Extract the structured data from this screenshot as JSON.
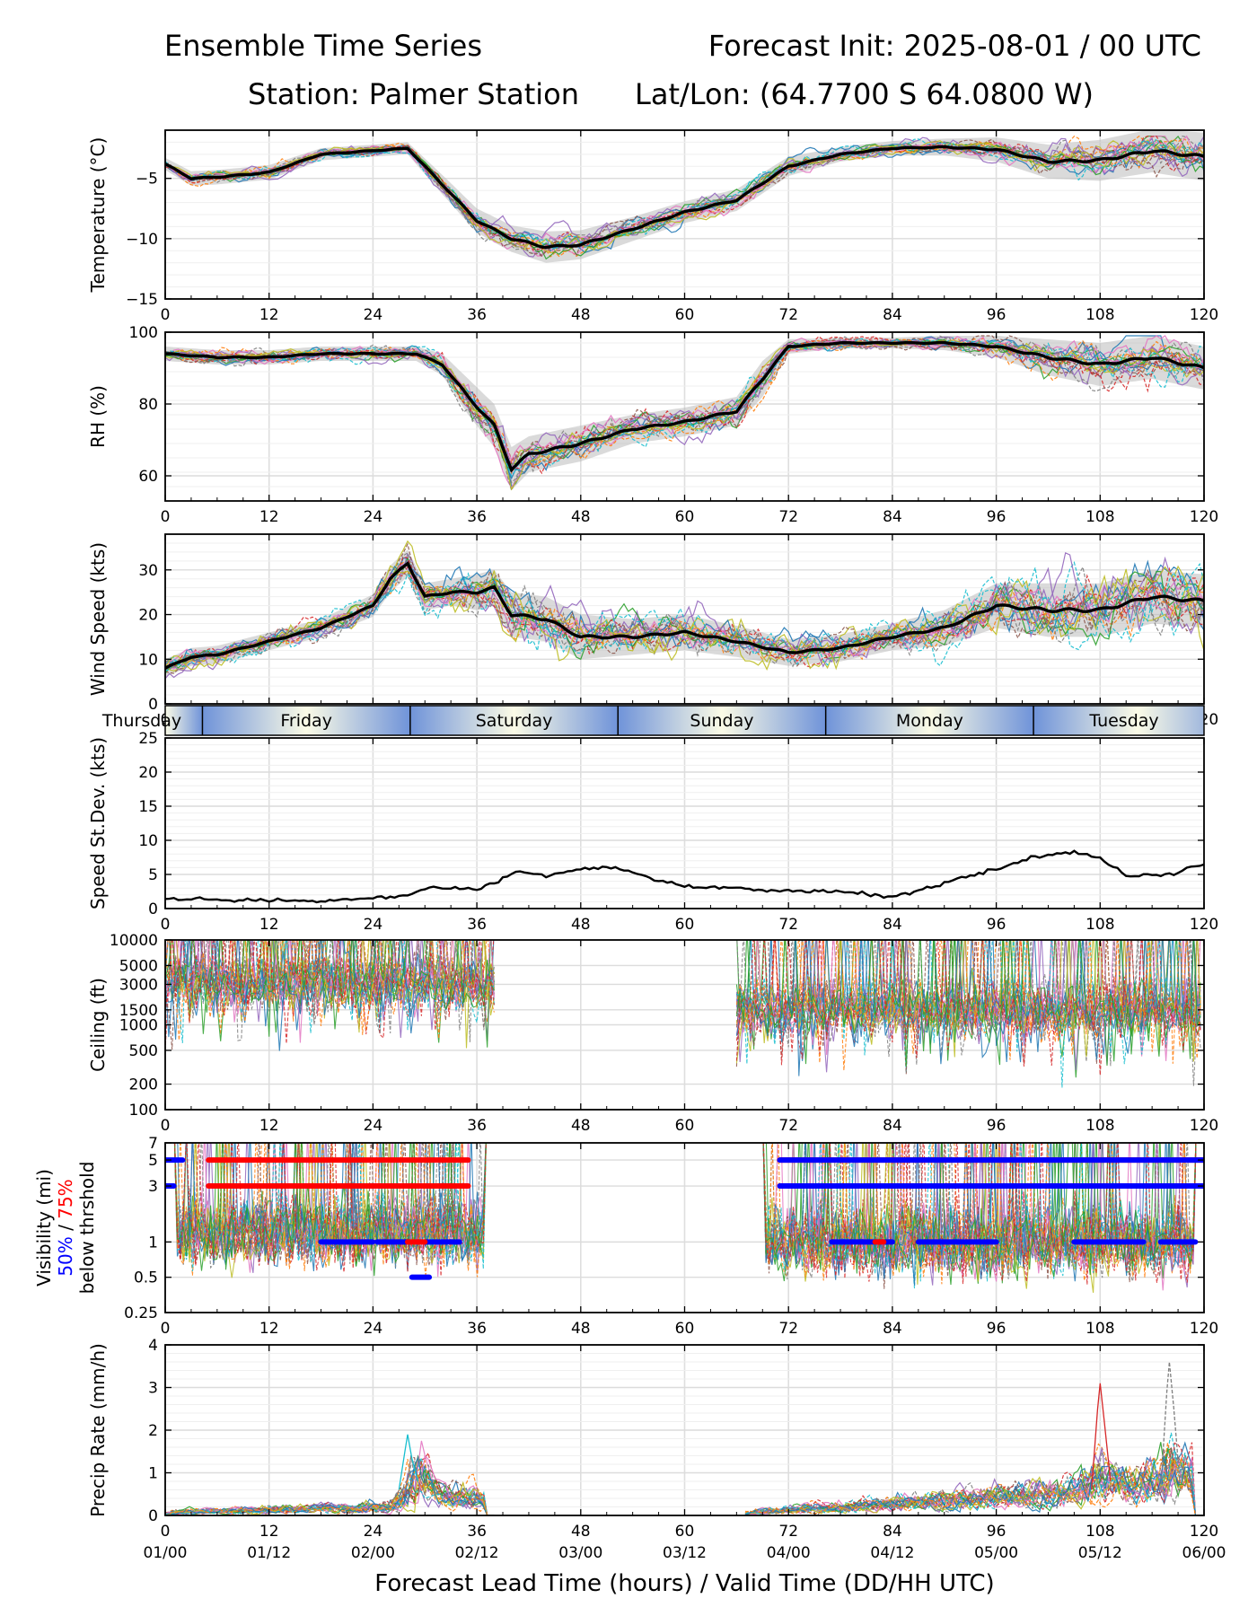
{
  "header": {
    "title": "Ensemble Time Series",
    "init": "Forecast Init: 2025-08-01 / 00 UTC",
    "station": "Station: Palmer Station",
    "latlon": "Lat/Lon: (64.7700 S 64.0800 W)"
  },
  "xaxis": {
    "label": "Forecast Lead Time (hours) / Valid Time (DD/HH UTC)",
    "range": [
      0,
      120
    ],
    "ticks": [
      0,
      12,
      24,
      36,
      48,
      60,
      72,
      84,
      96,
      108,
      120
    ],
    "tick_labels": [
      "0",
      "12",
      "24",
      "36",
      "48",
      "60",
      "72",
      "84",
      "96",
      "108",
      "120"
    ],
    "valid_time_labels": [
      "01/00",
      "01/12",
      "02/00",
      "02/12",
      "03/00",
      "03/12",
      "04/00",
      "04/12",
      "05/00",
      "05/12",
      "06/00"
    ]
  },
  "day_band": {
    "days": [
      {
        "label": "Thursday",
        "start": -4.3,
        "end": 4.3
      },
      {
        "label": "Friday",
        "start": 4.3,
        "end": 28.3
      },
      {
        "label": "Saturday",
        "start": 28.3,
        "end": 52.3
      },
      {
        "label": "Sunday",
        "start": 52.3,
        "end": 76.3
      },
      {
        "label": "Monday",
        "start": 76.3,
        "end": 100.3
      },
      {
        "label": "Tuesday",
        "start": 100.3,
        "end": 124.3
      }
    ]
  },
  "colors": {
    "ensemble": [
      "#1f77b4",
      "#ff7f0e",
      "#2ca02c",
      "#d62728",
      "#9467bd",
      "#8c564b",
      "#e377c2",
      "#7f7f7f",
      "#bcbd22",
      "#17becf"
    ],
    "mean": "#000000",
    "spread_fill": "#bbbbbb",
    "vis_50": "#0000ff",
    "vis_75": "#ff0000",
    "day_blue": "#6f93d9",
    "day_cream": "#fbfbe6"
  },
  "chart_data": [
    {
      "id": "temperature",
      "type": "line",
      "ylabel": "Temperature (°C)",
      "ylim": [
        -15,
        -1
      ],
      "yticks": [
        -15,
        -10,
        -5
      ],
      "ytick_labels": [
        "−15",
        "−10",
        "−5"
      ],
      "grid": true,
      "x": [
        0,
        3,
        6,
        12,
        18,
        24,
        28,
        32,
        36,
        40,
        44,
        48,
        54,
        60,
        66,
        72,
        78,
        84,
        90,
        96,
        102,
        108,
        114,
        120
      ],
      "mean": [
        -3.8,
        -5.0,
        -4.9,
        -4.5,
        -3.0,
        -2.7,
        -2.5,
        -5.5,
        -8.5,
        -10.0,
        -10.7,
        -10.5,
        -9.2,
        -7.8,
        -6.8,
        -4.0,
        -3.0,
        -2.5,
        -2.4,
        -2.6,
        -3.6,
        -3.5,
        -2.7,
        -3.2
      ],
      "spread": [
        0.5,
        0.6,
        0.6,
        0.6,
        0.5,
        0.5,
        0.5,
        0.8,
        1.0,
        1.1,
        1.3,
        1.2,
        1.0,
        0.9,
        0.9,
        0.8,
        0.6,
        0.6,
        0.7,
        1.0,
        1.4,
        1.7,
        1.8,
        2.0
      ],
      "members": 20
    },
    {
      "id": "rh",
      "type": "line",
      "ylabel": "RH (%)",
      "ylim": [
        53,
        100
      ],
      "yticks": [
        60,
        80,
        100
      ],
      "ytick_labels": [
        "60",
        "80",
        "100"
      ],
      "grid": true,
      "x": [
        0,
        6,
        12,
        18,
        24,
        29,
        32,
        35,
        38,
        40,
        42,
        48,
        54,
        60,
        66,
        69,
        72,
        78,
        84,
        90,
        96,
        102,
        108,
        114,
        120
      ],
      "mean": [
        94,
        93,
        93,
        94,
        94,
        94,
        91,
        82,
        74,
        62,
        66,
        69,
        73,
        75,
        78,
        87,
        96,
        97,
        97,
        97,
        96,
        93,
        91,
        93,
        90
      ],
      "spread": [
        2,
        2,
        2,
        2,
        2,
        2,
        3,
        5,
        6,
        6,
        5,
        5,
        4,
        4,
        4,
        5,
        2,
        1.5,
        1.5,
        2,
        3,
        5,
        6,
        6,
        6
      ],
      "members": 20
    },
    {
      "id": "wind",
      "type": "line",
      "ylabel": "Wind Speed (kts)",
      "ylim": [
        0,
        38
      ],
      "yticks": [
        0,
        10,
        20,
        30
      ],
      "ytick_labels": [
        "0",
        "10",
        "20",
        "30"
      ],
      "grid": true,
      "x": [
        0,
        3,
        6,
        12,
        18,
        24,
        26,
        28,
        30,
        33,
        36,
        38,
        40,
        44,
        48,
        54,
        60,
        66,
        72,
        78,
        84,
        90,
        96,
        102,
        108,
        114,
        120
      ],
      "mean": [
        8,
        10.5,
        11,
        14,
        17,
        22,
        28,
        31.5,
        24,
        25,
        25,
        26,
        20,
        19,
        15,
        15,
        16,
        14,
        11.5,
        12.5,
        15,
        17,
        22,
        21,
        21,
        24,
        23
      ],
      "spread": [
        2,
        2,
        2,
        2,
        2,
        2.5,
        3,
        3,
        3,
        3,
        4,
        4,
        5,
        5,
        5,
        4,
        4,
        3.5,
        3,
        3,
        3,
        4,
        5,
        6,
        6,
        6,
        6
      ],
      "members": 20
    },
    {
      "id": "speed_sd",
      "type": "line",
      "ylabel": "Speed St.Dev. (kts)",
      "ylim": [
        0,
        25
      ],
      "yticks": [
        0,
        5,
        10,
        15,
        20,
        25
      ],
      "ytick_labels": [
        "0",
        "5",
        "10",
        "15",
        "20",
        "25"
      ],
      "grid": true,
      "x": [
        0,
        6,
        12,
        18,
        24,
        28,
        31,
        36,
        41,
        44,
        48,
        52,
        56,
        60,
        66,
        72,
        78,
        84,
        90,
        96,
        100,
        105,
        108,
        111,
        116,
        120
      ],
      "values": [
        1.5,
        1.3,
        1.2,
        1.1,
        1.5,
        2.0,
        3.2,
        2.8,
        5.5,
        4.8,
        5.9,
        6.0,
        4.4,
        3.3,
        3.0,
        2.6,
        2.5,
        1.6,
        3.8,
        5.8,
        7.4,
        8.3,
        7.3,
        4.8,
        5.0,
        6.5
      ]
    },
    {
      "id": "ceiling",
      "type": "line",
      "ylabel": "Ceiling (ft)",
      "scale": "log",
      "ylim": [
        100,
        10000
      ],
      "yticks": [
        100,
        200,
        500,
        1000,
        1500,
        3000,
        5000,
        10000
      ],
      "ytick_labels": [
        "100",
        "200",
        "500",
        "1000",
        "1500",
        "3000",
        "5000",
        "10000"
      ],
      "grid": true,
      "active_windows": [
        [
          0,
          38
        ],
        [
          66,
          120
        ]
      ],
      "typical_base_ft": [
        3000,
        1500
      ],
      "members": 24
    },
    {
      "id": "visibility",
      "type": "line",
      "ylabel": "Visibility (mi)",
      "ylabel_line2_a": "50%",
      "ylabel_line2_sep": " / ",
      "ylabel_line2_b": "75%",
      "ylabel_line3": "below thrshold",
      "scale": "log",
      "ylim": [
        0.25,
        7
      ],
      "yticks": [
        0.25,
        0.5,
        1,
        3,
        5,
        7
      ],
      "ytick_labels": [
        "0.25",
        "0.5",
        "1",
        "3",
        "5",
        "7"
      ],
      "grid": true,
      "active_windows": [
        [
          0,
          38
        ],
        [
          68,
          120
        ]
      ],
      "thresholds": [
        {
          "threshold": 5,
          "series": "75%",
          "segments": [
            [
              5,
              35
            ],
            [
              71,
              120
            ]
          ]
        },
        {
          "threshold": 5,
          "series": "50%",
          "segments": [
            [
              0,
              2
            ],
            [
              71,
              120
            ]
          ]
        },
        {
          "threshold": 3,
          "series": "75%",
          "segments": [
            [
              5,
              35
            ],
            [
              71,
              120
            ]
          ]
        },
        {
          "threshold": 3,
          "series": "50%",
          "segments": [
            [
              0,
              1
            ],
            [
              71,
              120
            ]
          ]
        },
        {
          "threshold": 1,
          "series": "50%",
          "segments": [
            [
              18,
              24
            ],
            [
              24.5,
              28
            ],
            [
              30,
              34
            ],
            [
              77,
              84
            ],
            [
              87,
              96
            ],
            [
              105,
              113
            ],
            [
              115,
              119
            ]
          ]
        },
        {
          "threshold": 1,
          "series": "75%",
          "segments": [
            [
              28,
              30
            ],
            [
              82,
              83
            ]
          ]
        },
        {
          "threshold": 0.5,
          "series": "50%",
          "segments": [
            [
              28.5,
              30.5
            ]
          ]
        }
      ],
      "members": 24
    },
    {
      "id": "precip",
      "type": "line",
      "ylabel": "Precip Rate (mm/h)",
      "ylim": [
        0,
        4
      ],
      "yticks": [
        0,
        1,
        2,
        3,
        4
      ],
      "ytick_labels": [
        "0",
        "1",
        "2",
        "3",
        "4"
      ],
      "grid": true,
      "active_windows": [
        [
          0,
          38
        ],
        [
          67,
          120
        ]
      ],
      "peaks": [
        [
          28,
          1.9
        ],
        [
          108,
          3.1
        ],
        [
          116,
          3.6
        ]
      ],
      "members": 22
    }
  ]
}
